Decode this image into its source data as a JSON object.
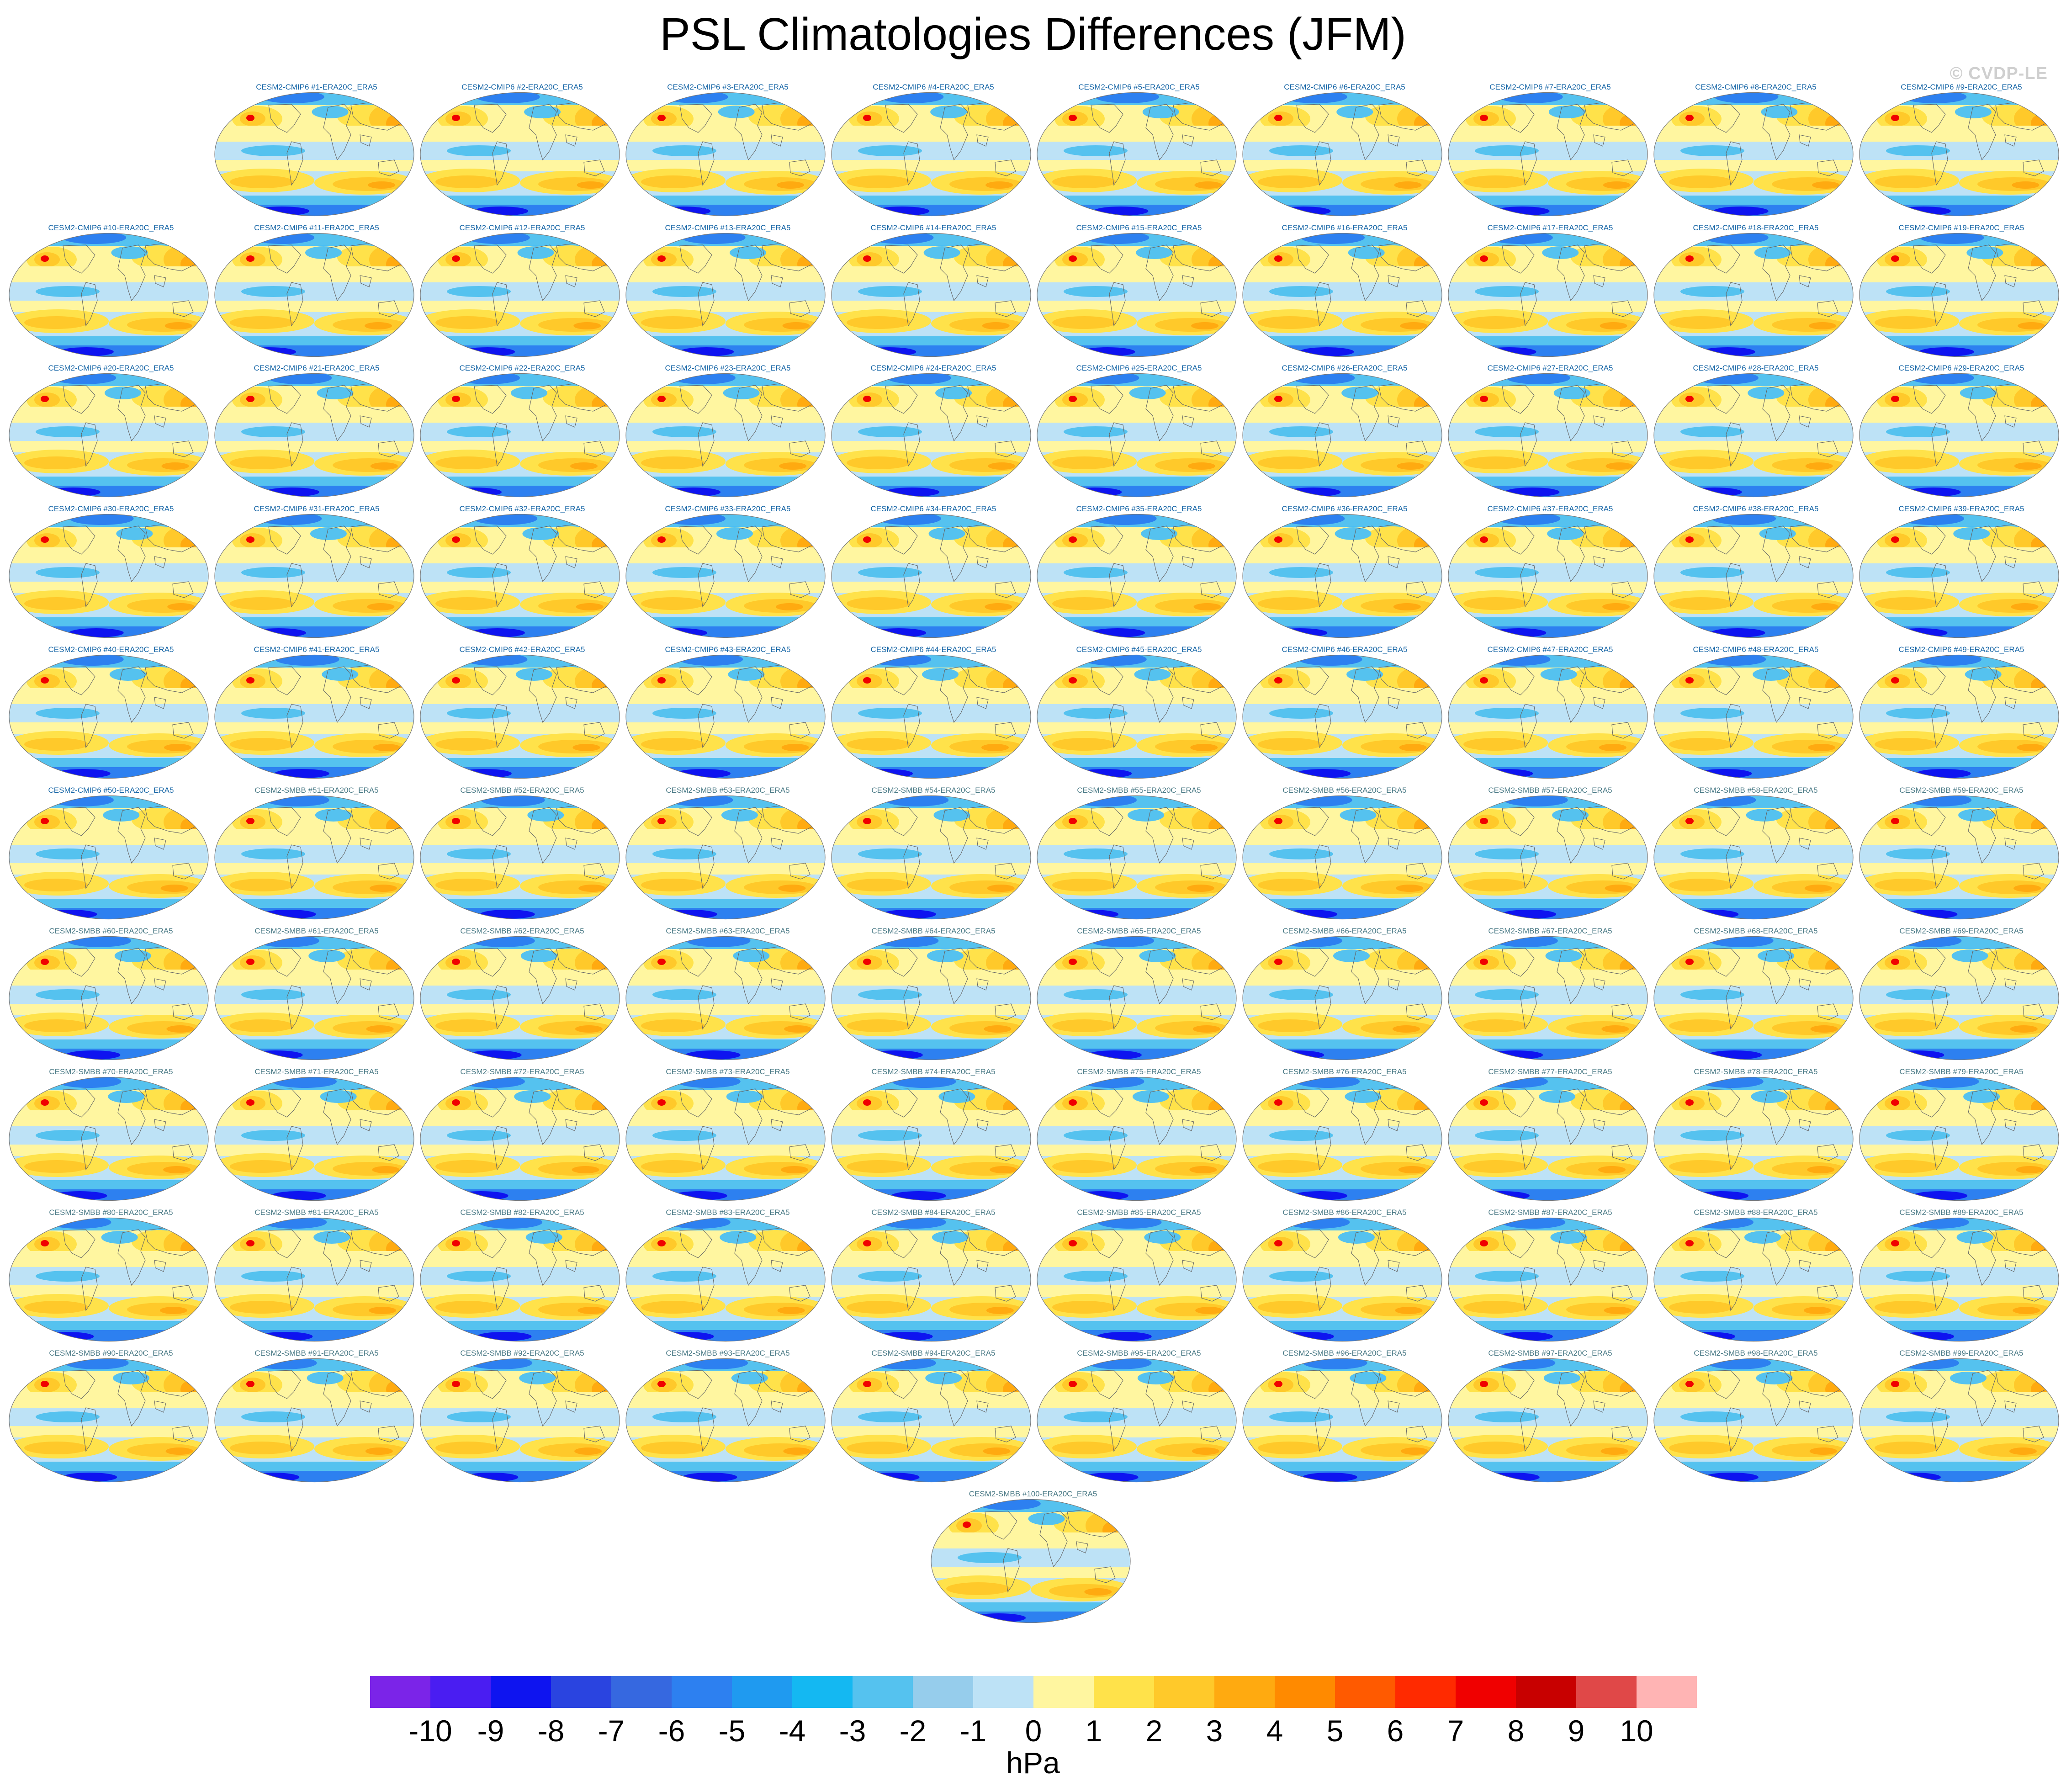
{
  "title": "PSL Climatologies Differences (JFM)",
  "watermark": "© CVDP-LE",
  "panels": [
    {
      "label": "CESM2-CMIP6 #1-ERA20C_ERA5",
      "group": "cmip6"
    },
    {
      "label": "CESM2-CMIP6 #2-ERA20C_ERA5",
      "group": "cmip6"
    },
    {
      "label": "CESM2-CMIP6 #3-ERA20C_ERA5",
      "group": "cmip6"
    },
    {
      "label": "CESM2-CMIP6 #4-ERA20C_ERA5",
      "group": "cmip6"
    },
    {
      "label": "CESM2-CMIP6 #5-ERA20C_ERA5",
      "group": "cmip6"
    },
    {
      "label": "CESM2-CMIP6 #6-ERA20C_ERA5",
      "group": "cmip6"
    },
    {
      "label": "CESM2-CMIP6 #7-ERA20C_ERA5",
      "group": "cmip6"
    },
    {
      "label": "CESM2-CMIP6 #8-ERA20C_ERA5",
      "group": "cmip6"
    },
    {
      "label": "CESM2-CMIP6 #9-ERA20C_ERA5",
      "group": "cmip6"
    },
    {
      "label": "CESM2-CMIP6 #10-ERA20C_ERA5",
      "group": "cmip6"
    },
    {
      "label": "CESM2-CMIP6 #11-ERA20C_ERA5",
      "group": "cmip6"
    },
    {
      "label": "CESM2-CMIP6 #12-ERA20C_ERA5",
      "group": "cmip6"
    },
    {
      "label": "CESM2-CMIP6 #13-ERA20C_ERA5",
      "group": "cmip6"
    },
    {
      "label": "CESM2-CMIP6 #14-ERA20C_ERA5",
      "group": "cmip6"
    },
    {
      "label": "CESM2-CMIP6 #15-ERA20C_ERA5",
      "group": "cmip6"
    },
    {
      "label": "CESM2-CMIP6 #16-ERA20C_ERA5",
      "group": "cmip6"
    },
    {
      "label": "CESM2-CMIP6 #17-ERA20C_ERA5",
      "group": "cmip6"
    },
    {
      "label": "CESM2-CMIP6 #18-ERA20C_ERA5",
      "group": "cmip6"
    },
    {
      "label": "CESM2-CMIP6 #19-ERA20C_ERA5",
      "group": "cmip6"
    },
    {
      "label": "CESM2-CMIP6 #20-ERA20C_ERA5",
      "group": "cmip6"
    },
    {
      "label": "CESM2-CMIP6 #21-ERA20C_ERA5",
      "group": "cmip6"
    },
    {
      "label": "CESM2-CMIP6 #22-ERA20C_ERA5",
      "group": "cmip6"
    },
    {
      "label": "CESM2-CMIP6 #23-ERA20C_ERA5",
      "group": "cmip6"
    },
    {
      "label": "CESM2-CMIP6 #24-ERA20C_ERA5",
      "group": "cmip6"
    },
    {
      "label": "CESM2-CMIP6 #25-ERA20C_ERA5",
      "group": "cmip6"
    },
    {
      "label": "CESM2-CMIP6 #26-ERA20C_ERA5",
      "group": "cmip6"
    },
    {
      "label": "CESM2-CMIP6 #27-ERA20C_ERA5",
      "group": "cmip6"
    },
    {
      "label": "CESM2-CMIP6 #28-ERA20C_ERA5",
      "group": "cmip6"
    },
    {
      "label": "CESM2-CMIP6 #29-ERA20C_ERA5",
      "group": "cmip6"
    },
    {
      "label": "CESM2-CMIP6 #30-ERA20C_ERA5",
      "group": "cmip6"
    },
    {
      "label": "CESM2-CMIP6 #31-ERA20C_ERA5",
      "group": "cmip6"
    },
    {
      "label": "CESM2-CMIP6 #32-ERA20C_ERA5",
      "group": "cmip6"
    },
    {
      "label": "CESM2-CMIP6 #33-ERA20C_ERA5",
      "group": "cmip6"
    },
    {
      "label": "CESM2-CMIP6 #34-ERA20C_ERA5",
      "group": "cmip6"
    },
    {
      "label": "CESM2-CMIP6 #35-ERA20C_ERA5",
      "group": "cmip6"
    },
    {
      "label": "CESM2-CMIP6 #36-ERA20C_ERA5",
      "group": "cmip6"
    },
    {
      "label": "CESM2-CMIP6 #37-ERA20C_ERA5",
      "group": "cmip6"
    },
    {
      "label": "CESM2-CMIP6 #38-ERA20C_ERA5",
      "group": "cmip6"
    },
    {
      "label": "CESM2-CMIP6 #39-ERA20C_ERA5",
      "group": "cmip6"
    },
    {
      "label": "CESM2-CMIP6 #40-ERA20C_ERA5",
      "group": "cmip6"
    },
    {
      "label": "CESM2-CMIP6 #41-ERA20C_ERA5",
      "group": "cmip6"
    },
    {
      "label": "CESM2-CMIP6 #42-ERA20C_ERA5",
      "group": "cmip6"
    },
    {
      "label": "CESM2-CMIP6 #43-ERA20C_ERA5",
      "group": "cmip6"
    },
    {
      "label": "CESM2-CMIP6 #44-ERA20C_ERA5",
      "group": "cmip6"
    },
    {
      "label": "CESM2-CMIP6 #45-ERA20C_ERA5",
      "group": "cmip6"
    },
    {
      "label": "CESM2-CMIP6 #46-ERA20C_ERA5",
      "group": "cmip6"
    },
    {
      "label": "CESM2-CMIP6 #47-ERA20C_ERA5",
      "group": "cmip6"
    },
    {
      "label": "CESM2-CMIP6 #48-ERA20C_ERA5",
      "group": "cmip6"
    },
    {
      "label": "CESM2-CMIP6 #49-ERA20C_ERA5",
      "group": "cmip6"
    },
    {
      "label": "CESM2-CMIP6 #50-ERA20C_ERA5",
      "group": "cmip6"
    },
    {
      "label": "CESM2-SMBB #51-ERA20C_ERA5",
      "group": "smbb"
    },
    {
      "label": "CESM2-SMBB #52-ERA20C_ERA5",
      "group": "smbb"
    },
    {
      "label": "CESM2-SMBB #53-ERA20C_ERA5",
      "group": "smbb"
    },
    {
      "label": "CESM2-SMBB #54-ERA20C_ERA5",
      "group": "smbb"
    },
    {
      "label": "CESM2-SMBB #55-ERA20C_ERA5",
      "group": "smbb"
    },
    {
      "label": "CESM2-SMBB #56-ERA20C_ERA5",
      "group": "smbb"
    },
    {
      "label": "CESM2-SMBB #57-ERA20C_ERA5",
      "group": "smbb"
    },
    {
      "label": "CESM2-SMBB #58-ERA20C_ERA5",
      "group": "smbb"
    },
    {
      "label": "CESM2-SMBB #59-ERA20C_ERA5",
      "group": "smbb"
    },
    {
      "label": "CESM2-SMBB #60-ERA20C_ERA5",
      "group": "smbb"
    },
    {
      "label": "CESM2-SMBB #61-ERA20C_ERA5",
      "group": "smbb"
    },
    {
      "label": "CESM2-SMBB #62-ERA20C_ERA5",
      "group": "smbb"
    },
    {
      "label": "CESM2-SMBB #63-ERA20C_ERA5",
      "group": "smbb"
    },
    {
      "label": "CESM2-SMBB #64-ERA20C_ERA5",
      "group": "smbb"
    },
    {
      "label": "CESM2-SMBB #65-ERA20C_ERA5",
      "group": "smbb"
    },
    {
      "label": "CESM2-SMBB #66-ERA20C_ERA5",
      "group": "smbb"
    },
    {
      "label": "CESM2-SMBB #67-ERA20C_ERA5",
      "group": "smbb"
    },
    {
      "label": "CESM2-SMBB #68-ERA20C_ERA5",
      "group": "smbb"
    },
    {
      "label": "CESM2-SMBB #69-ERA20C_ERA5",
      "group": "smbb"
    },
    {
      "label": "CESM2-SMBB #70-ERA20C_ERA5",
      "group": "smbb"
    },
    {
      "label": "CESM2-SMBB #71-ERA20C_ERA5",
      "group": "smbb"
    },
    {
      "label": "CESM2-SMBB #72-ERA20C_ERA5",
      "group": "smbb"
    },
    {
      "label": "CESM2-SMBB #73-ERA20C_ERA5",
      "group": "smbb"
    },
    {
      "label": "CESM2-SMBB #74-ERA20C_ERA5",
      "group": "smbb"
    },
    {
      "label": "CESM2-SMBB #75-ERA20C_ERA5",
      "group": "smbb"
    },
    {
      "label": "CESM2-SMBB #76-ERA20C_ERA5",
      "group": "smbb"
    },
    {
      "label": "CESM2-SMBB #77-ERA20C_ERA5",
      "group": "smbb"
    },
    {
      "label": "CESM2-SMBB #78-ERA20C_ERA5",
      "group": "smbb"
    },
    {
      "label": "CESM2-SMBB #79-ERA20C_ERA5",
      "group": "smbb"
    },
    {
      "label": "CESM2-SMBB #80-ERA20C_ERA5",
      "group": "smbb"
    },
    {
      "label": "CESM2-SMBB #81-ERA20C_ERA5",
      "group": "smbb"
    },
    {
      "label": "CESM2-SMBB #82-ERA20C_ERA5",
      "group": "smbb"
    },
    {
      "label": "CESM2-SMBB #83-ERA20C_ERA5",
      "group": "smbb"
    },
    {
      "label": "CESM2-SMBB #84-ERA20C_ERA5",
      "group": "smbb"
    },
    {
      "label": "CESM2-SMBB #85-ERA20C_ERA5",
      "group": "smbb"
    },
    {
      "label": "CESM2-SMBB #86-ERA20C_ERA5",
      "group": "smbb"
    },
    {
      "label": "CESM2-SMBB #87-ERA20C_ERA5",
      "group": "smbb"
    },
    {
      "label": "CESM2-SMBB #88-ERA20C_ERA5",
      "group": "smbb"
    },
    {
      "label": "CESM2-SMBB #89-ERA20C_ERA5",
      "group": "smbb"
    },
    {
      "label": "CESM2-SMBB #90-ERA20C_ERA5",
      "group": "smbb"
    },
    {
      "label": "CESM2-SMBB #91-ERA20C_ERA5",
      "group": "smbb"
    },
    {
      "label": "CESM2-SMBB #92-ERA20C_ERA5",
      "group": "smbb"
    },
    {
      "label": "CESM2-SMBB #93-ERA20C_ERA5",
      "group": "smbb"
    },
    {
      "label": "CESM2-SMBB #94-ERA20C_ERA5",
      "group": "smbb"
    },
    {
      "label": "CESM2-SMBB #95-ERA20C_ERA5",
      "group": "smbb"
    },
    {
      "label": "CESM2-SMBB #96-ERA20C_ERA5",
      "group": "smbb"
    },
    {
      "label": "CESM2-SMBB #97-ERA20C_ERA5",
      "group": "smbb"
    },
    {
      "label": "CESM2-SMBB #98-ERA20C_ERA5",
      "group": "smbb"
    },
    {
      "label": "CESM2-SMBB #99-ERA20C_ERA5",
      "group": "smbb"
    },
    {
      "label": "CESM2-SMBB #100-ERA20C_ERA5",
      "group": "smbb"
    }
  ],
  "colorbar": {
    "units": "hPa",
    "labels": [
      "-10",
      "-9",
      "-8",
      "-7",
      "-6",
      "-5",
      "-4",
      "-3",
      "-2",
      "-1",
      "0",
      "1",
      "2",
      "3",
      "4",
      "5",
      "6",
      "7",
      "8",
      "9",
      "10"
    ],
    "colors": [
      "#7b24e8",
      "#4a1df2",
      "#0e14f0",
      "#2a44e0",
      "#3668e0",
      "#2d80f0",
      "#1f9af0",
      "#14b8f2",
      "#55c2ef",
      "#96cdec",
      "#bde2f6",
      "#fff6a0",
      "#ffe24a",
      "#ffc92a",
      "#ffaa10",
      "#ff8a00",
      "#ff5a00",
      "#ff2a00",
      "#f00000",
      "#c80000",
      "#e04848",
      "#ffb4b4"
    ]
  },
  "map_colors": {
    "ocean_light": "#bde2f6",
    "ocean_mid": "#55c2ef",
    "ocean_deep": "#2d80f0",
    "polar_low": "#0e14f0",
    "pale_yellow": "#fff6a0",
    "yellow": "#ffe24a",
    "orange": "#ffc92a",
    "deep_orange": "#ffaa10",
    "red_high": "#f00000",
    "coast": "#666666"
  }
}
